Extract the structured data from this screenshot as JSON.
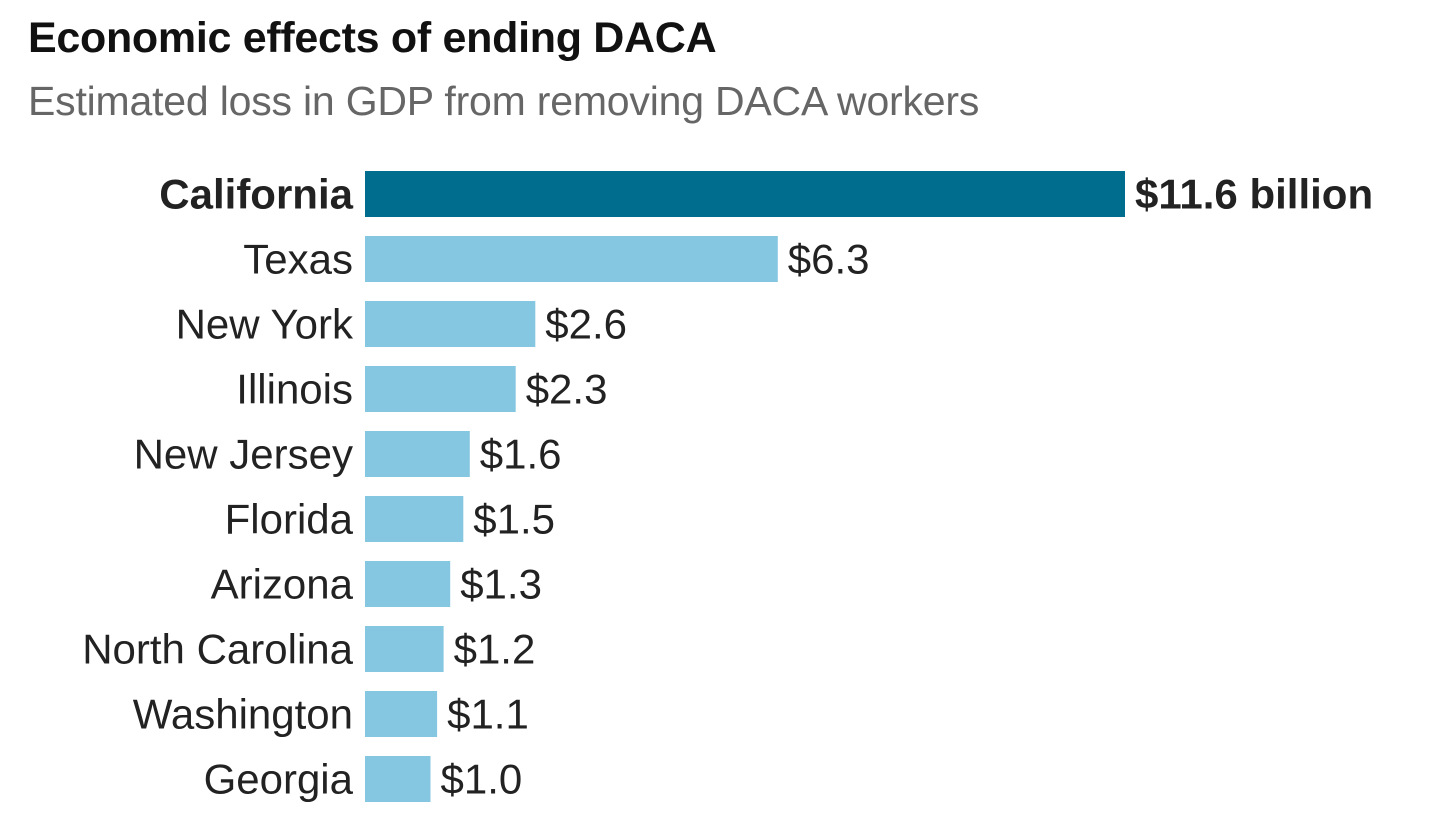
{
  "header": {
    "title": "Economic effects of ending DACA",
    "subtitle": "Estimated loss in GDP from removing DACA workers"
  },
  "chart_data": {
    "type": "bar",
    "orientation": "horizontal",
    "title": "Economic effects of ending DACA",
    "subtitle": "Estimated loss in GDP from removing DACA workers",
    "categories": [
      "California",
      "Texas",
      "New York",
      "Illinois",
      "New Jersey",
      "Florida",
      "Arizona",
      "North Carolina",
      "Washington",
      "Georgia"
    ],
    "values": [
      11.6,
      6.3,
      2.6,
      2.3,
      1.6,
      1.5,
      1.3,
      1.2,
      1.1,
      1.0
    ],
    "value_labels": [
      "$11.6 billion",
      "$6.3",
      "$2.6",
      "$2.3",
      "$1.6",
      "$1.5",
      "$1.3",
      "$1.2",
      "$1.1",
      "$1.0"
    ],
    "highlight_index": 0,
    "xlim": [
      0,
      11.6
    ],
    "grid": false,
    "colors": {
      "highlight": "#006d8f",
      "default": "#85c6e0",
      "text": "#222222"
    }
  }
}
